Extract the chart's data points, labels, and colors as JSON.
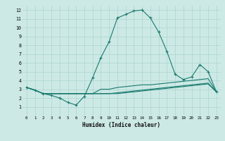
{
  "xlabel": "Humidex (Indice chaleur)",
  "ylabel": "",
  "bg_color": "#cce9e5",
  "line_color": "#1a7a6e",
  "grid_color": "#add4cf",
  "xlim": [
    -0.5,
    23.5
  ],
  "ylim": [
    0,
    12.5
  ],
  "xticks": [
    0,
    1,
    2,
    3,
    4,
    5,
    6,
    7,
    8,
    9,
    10,
    11,
    12,
    13,
    14,
    15,
    16,
    17,
    18,
    19,
    20,
    21,
    22,
    23
  ],
  "yticks": [
    1,
    2,
    3,
    4,
    5,
    6,
    7,
    8,
    9,
    10,
    11,
    12
  ],
  "line1_x": [
    0,
    1,
    2,
    3,
    4,
    5,
    6,
    7,
    8,
    9,
    10,
    11,
    12,
    13,
    14,
    15,
    16,
    17,
    18,
    19,
    20,
    21,
    22,
    23
  ],
  "line1_y": [
    3.2,
    2.9,
    2.5,
    2.3,
    2.0,
    1.5,
    1.2,
    2.2,
    4.3,
    6.6,
    8.4,
    11.1,
    11.5,
    11.9,
    12.0,
    11.1,
    9.5,
    7.3,
    4.7,
    4.1,
    4.4,
    5.8,
    5.0,
    2.7
  ],
  "line2_x": [
    0,
    1,
    2,
    3,
    4,
    5,
    6,
    7,
    8,
    9,
    10,
    11,
    12,
    13,
    14,
    15,
    16,
    17,
    18,
    19,
    20,
    21,
    22,
    23
  ],
  "line2_y": [
    3.2,
    2.9,
    2.5,
    2.5,
    2.5,
    2.5,
    2.5,
    2.5,
    2.5,
    3.0,
    3.0,
    3.2,
    3.3,
    3.4,
    3.5,
    3.5,
    3.6,
    3.7,
    3.8,
    3.9,
    4.0,
    4.1,
    4.2,
    2.7
  ],
  "line3_x": [
    0,
    1,
    2,
    3,
    4,
    5,
    6,
    7,
    8,
    9,
    10,
    11,
    12,
    13,
    14,
    15,
    16,
    17,
    18,
    19,
    20,
    21,
    22,
    23
  ],
  "line3_y": [
    3.2,
    2.9,
    2.5,
    2.5,
    2.5,
    2.5,
    2.5,
    2.5,
    2.5,
    2.5,
    2.5,
    2.6,
    2.7,
    2.8,
    2.9,
    3.0,
    3.1,
    3.2,
    3.3,
    3.4,
    3.5,
    3.6,
    3.7,
    2.7
  ],
  "line4_x": [
    0,
    1,
    2,
    3,
    4,
    5,
    6,
    7,
    8,
    9,
    10,
    11,
    12,
    13,
    14,
    15,
    16,
    17,
    18,
    19,
    20,
    21,
    22,
    23
  ],
  "line4_y": [
    3.2,
    2.9,
    2.5,
    2.5,
    2.5,
    2.5,
    2.5,
    2.5,
    2.5,
    2.5,
    2.5,
    2.5,
    2.6,
    2.7,
    2.8,
    2.9,
    3.0,
    3.1,
    3.2,
    3.3,
    3.4,
    3.5,
    3.6,
    2.7
  ]
}
